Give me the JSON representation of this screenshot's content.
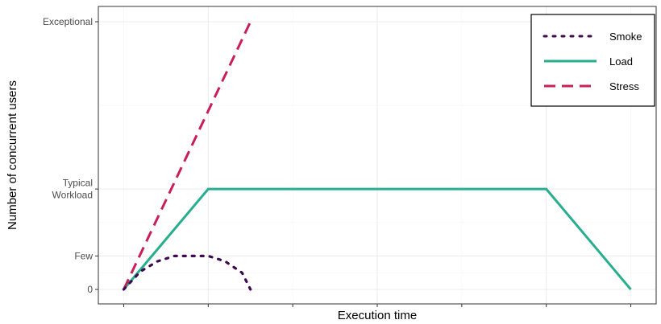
{
  "chart_data": {
    "type": "line",
    "title": "",
    "xlabel": "Execution time",
    "ylabel": "Number of concurrent users",
    "xlim": [
      -0.15,
      3.15
    ],
    "ylim": [
      -0.1,
      4.0
    ],
    "grid": true,
    "legend_position": "top-right",
    "y_ticks": [
      {
        "value": 0,
        "lines": [
          "0"
        ]
      },
      {
        "value": 0.5,
        "lines": [
          "Few"
        ]
      },
      {
        "value": 1.5,
        "lines": [
          "Typical",
          "Workload"
        ]
      },
      {
        "value": 4.0,
        "lines": [
          "Exceptional"
        ]
      }
    ],
    "x_ticks": [
      0,
      0.5,
      1.0,
      1.5,
      2.0,
      2.5,
      3.0
    ],
    "series": [
      {
        "name": "Smoke",
        "color": "#3d0a4f",
        "dash": "dotted",
        "x": [
          0,
          0.1,
          0.2,
          0.3,
          0.4,
          0.5,
          0.6,
          0.7,
          0.75
        ],
        "y": [
          0,
          0.27,
          0.42,
          0.5,
          0.5,
          0.5,
          0.42,
          0.25,
          0
        ]
      },
      {
        "name": "Load",
        "color": "#27ae8f",
        "dash": "solid",
        "x": [
          0,
          0.5,
          2.5,
          3.0
        ],
        "y": [
          0,
          1.5,
          1.5,
          0
        ]
      },
      {
        "name": "Stress",
        "color": "#c81e5a",
        "dash": "dashed",
        "x": [
          0,
          0.75
        ],
        "y": [
          0,
          4.0
        ]
      }
    ]
  }
}
